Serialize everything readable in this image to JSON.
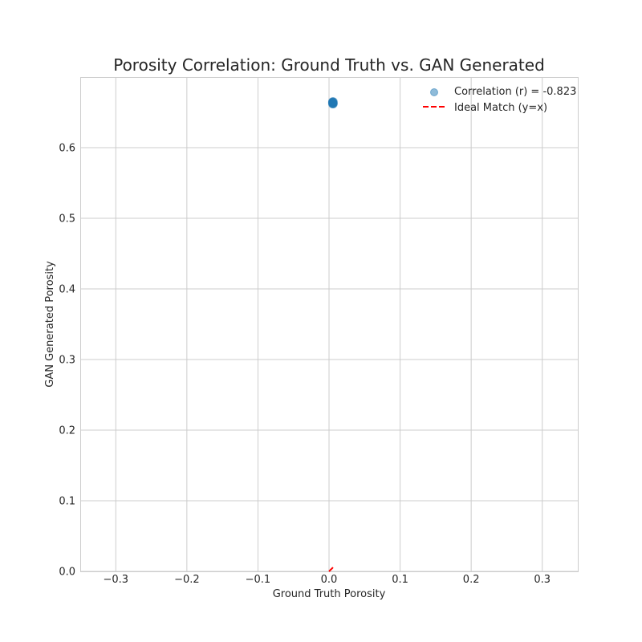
{
  "chart_data": {
    "type": "scatter",
    "title": "Porosity Correlation: Ground Truth vs. GAN Generated",
    "xlabel": "Ground Truth Porosity",
    "ylabel": "GAN Generated Porosity",
    "xlim": [
      -0.35,
      0.35
    ],
    "ylim": [
      0.0,
      0.7
    ],
    "xticks": [
      -0.3,
      -0.2,
      -0.1,
      0.0,
      0.1,
      0.2,
      0.3
    ],
    "xtick_labels": [
      "−0.3",
      "−0.2",
      "−0.1",
      "0.0",
      "0.1",
      "0.2",
      "0.3"
    ],
    "yticks": [
      0.0,
      0.1,
      0.2,
      0.3,
      0.4,
      0.5,
      0.6
    ],
    "ytick_labels": [
      "0.0",
      "0.1",
      "0.2",
      "0.3",
      "0.4",
      "0.5",
      "0.6"
    ],
    "grid": true,
    "legend_position": "top-right",
    "series": [
      {
        "name": "Correlation (r) = -0.823",
        "kind": "scatter",
        "color": "#1f77b4",
        "opacity": 0.5,
        "x": [
          0.005,
          0.005,
          0.006,
          0.005,
          0.006,
          0.005,
          0.005,
          0.006
        ],
        "y": [
          0.663,
          0.664,
          0.662,
          0.665,
          0.663,
          0.662,
          0.664,
          0.665
        ]
      },
      {
        "name": "Ideal Match (y=x)",
        "kind": "line",
        "style": "dashed",
        "color": "#ff0000",
        "x": [
          0.0,
          0.006
        ],
        "y": [
          0.0,
          0.006
        ]
      }
    ]
  }
}
